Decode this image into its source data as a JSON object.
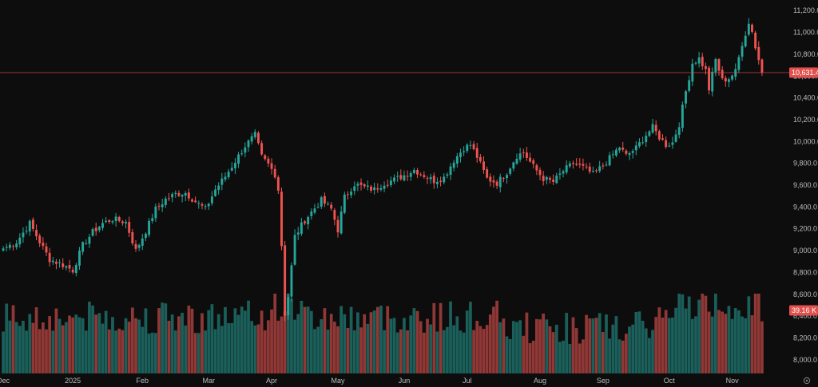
{
  "chart_data": {
    "type": "candlestick",
    "colors": {
      "up": "#26a69a",
      "down": "#ef5350",
      "background": "#0d0d0d",
      "price_line": "#ef5350"
    },
    "grid": false,
    "y_axis": {
      "position": "right",
      "range": [
        7860,
        11260
      ],
      "ticks": [
        "11,200.0",
        "11,000.0",
        "10,800.0",
        "10,600.0",
        "10,400.0",
        "10,200.0",
        "10,000.0",
        "9,800.0",
        "9,600.0",
        "9,400.0",
        "9,200.0",
        "9,000.0",
        "8,800.0",
        "8,600.0",
        "8,400.0",
        "8,200.0",
        "8,000.0"
      ],
      "tick_values": [
        11200,
        11000,
        10800,
        10600,
        10400,
        10200,
        10000,
        9800,
        9600,
        9400,
        9200,
        9000,
        8800,
        8600,
        8400,
        8200,
        8000
      ]
    },
    "x_axis": {
      "labels": [
        {
          "label": "Dec",
          "index": 0
        },
        {
          "label": "2025",
          "index": 21
        },
        {
          "label": "Feb",
          "index": 42
        },
        {
          "label": "Mar",
          "index": 62
        },
        {
          "label": "Apr",
          "index": 81
        },
        {
          "label": "May",
          "index": 101
        },
        {
          "label": "Jun",
          "index": 121
        },
        {
          "label": "Jul",
          "index": 140
        },
        {
          "label": "Aug",
          "index": 162
        },
        {
          "label": "Sep",
          "index": 181
        },
        {
          "label": "Oct",
          "index": 201
        },
        {
          "label": "Nov",
          "index": 220
        }
      ]
    },
    "last_price": {
      "value": 10631.4,
      "label": "10,631.4"
    },
    "last_volume": {
      "label": "39.16 K"
    },
    "volume_axis_max": 60,
    "waypoints": [
      [
        0,
        9020
      ],
      [
        4,
        9080
      ],
      [
        8,
        9250
      ],
      [
        11,
        9080
      ],
      [
        14,
        8920
      ],
      [
        18,
        8870
      ],
      [
        21,
        8820
      ],
      [
        24,
        9050
      ],
      [
        27,
        9170
      ],
      [
        30,
        9250
      ],
      [
        33,
        9290
      ],
      [
        37,
        9260
      ],
      [
        40,
        9000
      ],
      [
        43,
        9180
      ],
      [
        46,
        9380
      ],
      [
        49,
        9470
      ],
      [
        52,
        9520
      ],
      [
        55,
        9530
      ],
      [
        58,
        9450
      ],
      [
        61,
        9380
      ],
      [
        64,
        9560
      ],
      [
        67,
        9680
      ],
      [
        70,
        9820
      ],
      [
        73,
        9960
      ],
      [
        76,
        10060
      ],
      [
        78,
        9860
      ],
      [
        80,
        9790
      ],
      [
        82,
        9700
      ],
      [
        83,
        9560
      ],
      [
        84,
        9050
      ],
      [
        85,
        8420
      ],
      [
        86,
        8580
      ],
      [
        88,
        9130
      ],
      [
        91,
        9280
      ],
      [
        94,
        9390
      ],
      [
        96,
        9460
      ],
      [
        99,
        9380
      ],
      [
        101,
        9190
      ],
      [
        103,
        9490
      ],
      [
        106,
        9610
      ],
      [
        109,
        9580
      ],
      [
        112,
        9560
      ],
      [
        115,
        9620
      ],
      [
        118,
        9650
      ],
      [
        121,
        9690
      ],
      [
        124,
        9740
      ],
      [
        127,
        9690
      ],
      [
        130,
        9640
      ],
      [
        133,
        9670
      ],
      [
        136,
        9830
      ],
      [
        139,
        9940
      ],
      [
        141,
        9970
      ],
      [
        143,
        9860
      ],
      [
        146,
        9660
      ],
      [
        149,
        9620
      ],
      [
        152,
        9720
      ],
      [
        155,
        9870
      ],
      [
        157,
        9900
      ],
      [
        160,
        9770
      ],
      [
        163,
        9660
      ],
      [
        166,
        9630
      ],
      [
        169,
        9730
      ],
      [
        172,
        9800
      ],
      [
        175,
        9760
      ],
      [
        178,
        9700
      ],
      [
        181,
        9780
      ],
      [
        184,
        9880
      ],
      [
        186,
        9950
      ],
      [
        188,
        9870
      ],
      [
        191,
        9940
      ],
      [
        194,
        10060
      ],
      [
        196,
        10130
      ],
      [
        198,
        10040
      ],
      [
        200,
        9970
      ],
      [
        202,
        9990
      ],
      [
        204,
        10160
      ],
      [
        206,
        10460
      ],
      [
        208,
        10720
      ],
      [
        210,
        10760
      ],
      [
        212,
        10650
      ],
      [
        213,
        10480
      ],
      [
        215,
        10750
      ],
      [
        217,
        10560
      ],
      [
        219,
        10580
      ],
      [
        221,
        10640
      ],
      [
        223,
        10900
      ],
      [
        225,
        11080
      ],
      [
        226,
        11020
      ],
      [
        227,
        10860
      ],
      [
        229,
        10631.4
      ]
    ]
  }
}
